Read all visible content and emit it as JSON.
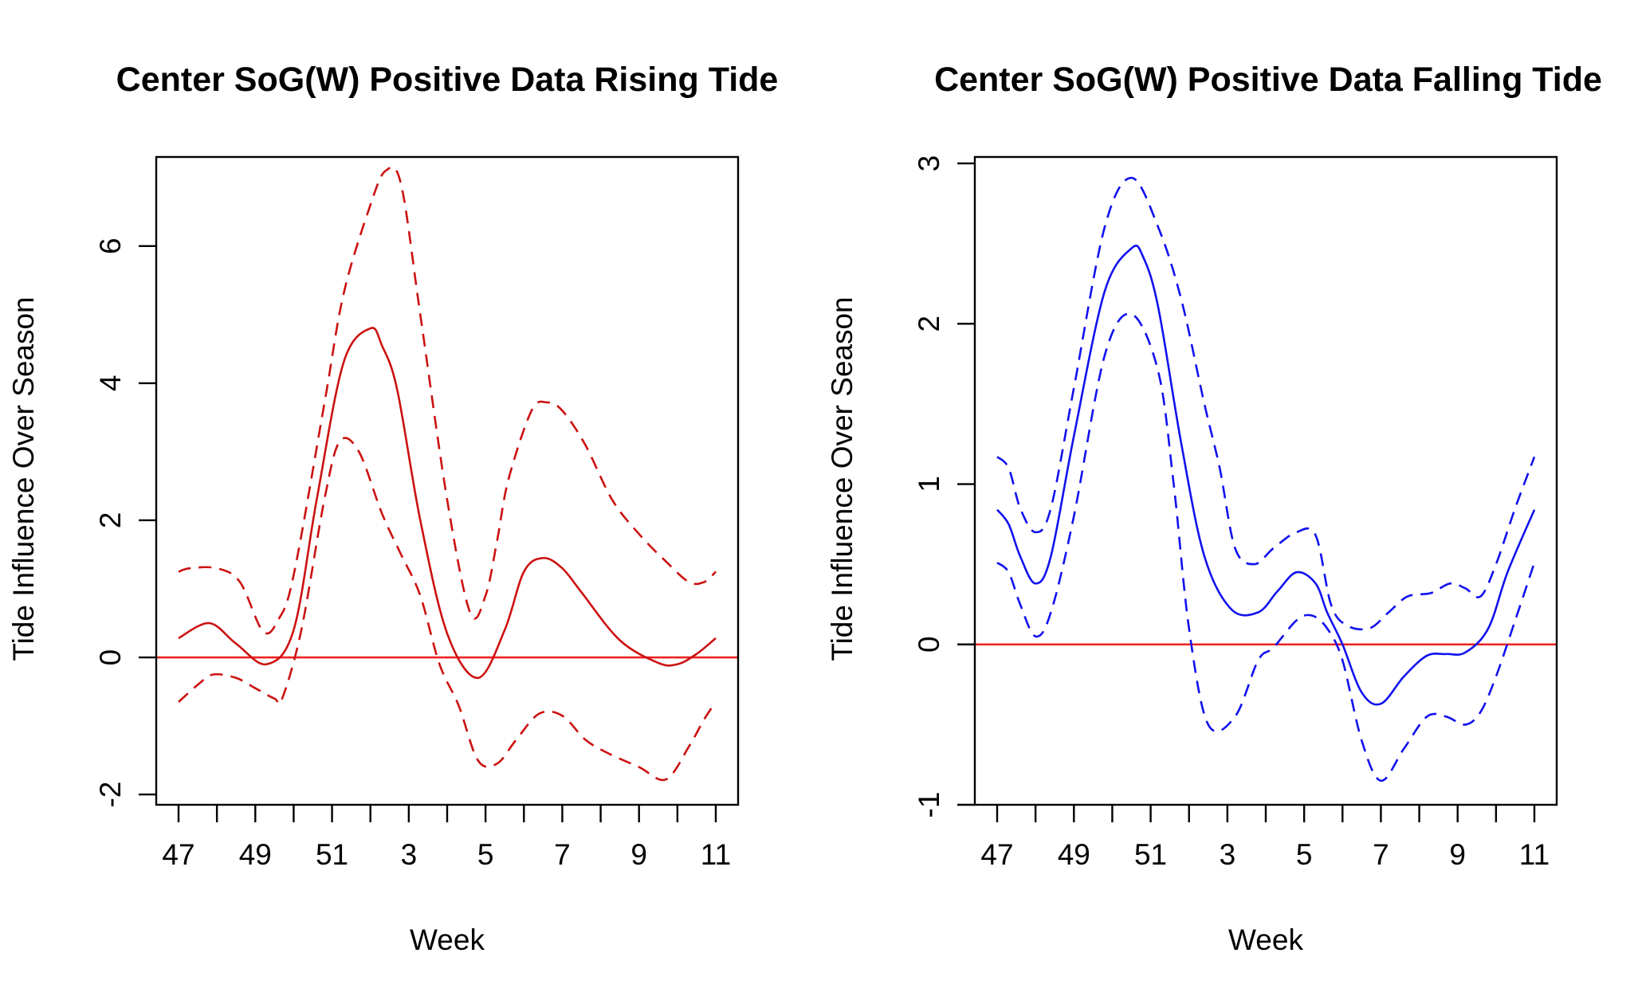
{
  "chart_data": [
    {
      "type": "line",
      "title": "Center SoG(W) Positive Data Rising Tide",
      "xlabel": "Week",
      "ylabel": "Tide Influence Over Season",
      "xlim": [
        0,
        14
      ],
      "ylim": [
        -2.15,
        7.3
      ],
      "x_ticks": [
        0,
        1,
        2,
        3,
        4,
        5,
        6,
        7,
        8,
        9,
        10,
        11,
        12,
        13,
        14
      ],
      "x_tick_labels": [
        "47",
        "",
        "49",
        "",
        "51",
        "",
        "3",
        "",
        "5",
        "",
        "7",
        "",
        "9",
        "",
        "11"
      ],
      "y_ticks": [
        -2,
        0,
        2,
        4,
        6
      ],
      "y_tick_labels": [
        "-2",
        "0",
        "2",
        "4",
        "6"
      ],
      "reference_line": {
        "y": 0,
        "color": "#ee2222"
      },
      "series": [
        {
          "role": "estimate",
          "style": "solid",
          "color": "#cc1111",
          "x": [
            0,
            0.8,
            1.5,
            2.3,
            3.0,
            3.6,
            4.3,
            5.0,
            5.3,
            5.7,
            6.3,
            7.0,
            7.8,
            8.5,
            9.0,
            9.5,
            10.0,
            10.5,
            11.5,
            12.5,
            13.0,
            13.5,
            14.0
          ],
          "y": [
            0.28,
            0.5,
            0.2,
            -0.1,
            0.4,
            2.3,
            4.3,
            4.8,
            4.55,
            3.9,
            2.0,
            0.35,
            -0.3,
            0.4,
            1.25,
            1.45,
            1.3,
            0.95,
            0.25,
            -0.08,
            -0.1,
            0.05,
            0.28
          ]
        },
        {
          "role": "upper",
          "style": "dashed",
          "color": "#cc1111",
          "x": [
            0,
            0.3,
            1.0,
            1.6,
            2.2,
            2.6,
            3.0,
            3.8,
            4.3,
            5.0,
            5.4,
            5.8,
            6.3,
            7.0,
            7.6,
            8.0,
            8.3,
            8.6,
            9.2,
            9.6,
            10.0,
            10.6,
            11.3,
            12.0,
            12.7,
            13.3,
            13.7,
            14.0
          ],
          "y": [
            1.25,
            1.3,
            1.3,
            1.1,
            0.38,
            0.55,
            1.2,
            3.7,
            5.3,
            6.6,
            7.1,
            6.9,
            5.0,
            2.3,
            0.65,
            0.9,
            1.7,
            2.6,
            3.6,
            3.72,
            3.6,
            3.1,
            2.3,
            1.8,
            1.4,
            1.1,
            1.1,
            1.25
          ]
        },
        {
          "role": "lower",
          "style": "dashed",
          "color": "#cc1111",
          "x": [
            0,
            0.5,
            0.9,
            1.5,
            2.0,
            2.5,
            2.7,
            3.2,
            3.8,
            4.2,
            4.7,
            5.3,
            5.8,
            6.3,
            6.8,
            7.3,
            7.8,
            8.3,
            8.8,
            9.4,
            10.0,
            10.6,
            11.2,
            12.0,
            12.7,
            13.3,
            13.7,
            14.0
          ],
          "y": [
            -0.65,
            -0.4,
            -0.25,
            -0.3,
            -0.45,
            -0.6,
            -0.6,
            0.4,
            2.3,
            3.15,
            3.0,
            2.1,
            1.5,
            0.9,
            -0.1,
            -0.7,
            -1.5,
            -1.55,
            -1.2,
            -0.82,
            -0.85,
            -1.2,
            -1.4,
            -1.6,
            -1.78,
            -1.3,
            -0.9,
            -0.65
          ]
        }
      ]
    },
    {
      "type": "line",
      "title": "Center SoG(W) Positive Data Falling Tide",
      "xlabel": "Week",
      "ylabel": "Tide Influence Over Season",
      "xlim": [
        0,
        14
      ],
      "ylim": [
        -1.0,
        3.04
      ],
      "x_ticks": [
        0,
        1,
        2,
        3,
        4,
        5,
        6,
        7,
        8,
        9,
        10,
        11,
        12,
        13,
        14
      ],
      "x_tick_labels": [
        "47",
        "",
        "49",
        "",
        "51",
        "",
        "3",
        "",
        "5",
        "",
        "7",
        "",
        "9",
        "",
        "11"
      ],
      "y_ticks": [
        -1,
        0,
        1,
        2,
        3
      ],
      "y_tick_labels": [
        "-1",
        "0",
        "1",
        "2",
        "3"
      ],
      "reference_line": {
        "y": 0,
        "color": "#ee2222"
      },
      "series": [
        {
          "role": "estimate",
          "style": "solid",
          "color": "#1111ee",
          "x": [
            0,
            0.3,
            0.6,
            1.0,
            1.4,
            2.0,
            2.8,
            3.5,
            3.8,
            4.2,
            4.8,
            5.4,
            6.1,
            6.8,
            7.3,
            7.8,
            8.3,
            8.6,
            9.0,
            9.5,
            10.0,
            10.6,
            11.2,
            11.7,
            12.2,
            12.8,
            13.3,
            14.0
          ],
          "y": [
            0.84,
            0.75,
            0.55,
            0.38,
            0.55,
            1.3,
            2.2,
            2.47,
            2.42,
            2.1,
            1.25,
            0.55,
            0.22,
            0.2,
            0.33,
            0.45,
            0.38,
            0.2,
            0.0,
            -0.3,
            -0.37,
            -0.2,
            -0.07,
            -0.06,
            -0.05,
            0.1,
            0.45,
            0.84
          ]
        },
        {
          "role": "upper",
          "style": "dashed",
          "color": "#1111ee",
          "x": [
            0,
            0.3,
            0.6,
            1.0,
            1.4,
            2.0,
            2.8,
            3.5,
            4.2,
            4.8,
            5.4,
            5.8,
            6.2,
            6.7,
            7.2,
            7.8,
            8.3,
            8.7,
            9.1,
            9.7,
            10.2,
            10.7,
            11.3,
            11.8,
            12.2,
            12.6,
            13.0,
            13.5,
            14.0
          ],
          "y": [
            1.17,
            1.1,
            0.85,
            0.7,
            0.85,
            1.6,
            2.6,
            2.91,
            2.6,
            2.15,
            1.5,
            1.1,
            0.6,
            0.5,
            0.6,
            0.7,
            0.68,
            0.25,
            0.12,
            0.1,
            0.2,
            0.3,
            0.32,
            0.38,
            0.35,
            0.3,
            0.5,
            0.85,
            1.17
          ]
        },
        {
          "role": "lower",
          "style": "dashed",
          "color": "#1111ee",
          "x": [
            0,
            0.3,
            0.6,
            1.0,
            1.4,
            2.0,
            2.8,
            3.5,
            4.2,
            4.6,
            5.0,
            5.5,
            6.2,
            6.8,
            7.2,
            7.8,
            8.2,
            8.6,
            9.0,
            9.5,
            10.0,
            10.6,
            11.2,
            11.7,
            12.2,
            12.6,
            13.0,
            13.5,
            14.0
          ],
          "y": [
            0.51,
            0.45,
            0.25,
            0.05,
            0.2,
            0.8,
            1.8,
            2.06,
            1.7,
            1.0,
            0.1,
            -0.5,
            -0.45,
            -0.1,
            -0.02,
            0.15,
            0.18,
            0.1,
            -0.1,
            -0.6,
            -0.85,
            -0.65,
            -0.45,
            -0.45,
            -0.5,
            -0.42,
            -0.2,
            0.15,
            0.51
          ]
        }
      ]
    }
  ]
}
